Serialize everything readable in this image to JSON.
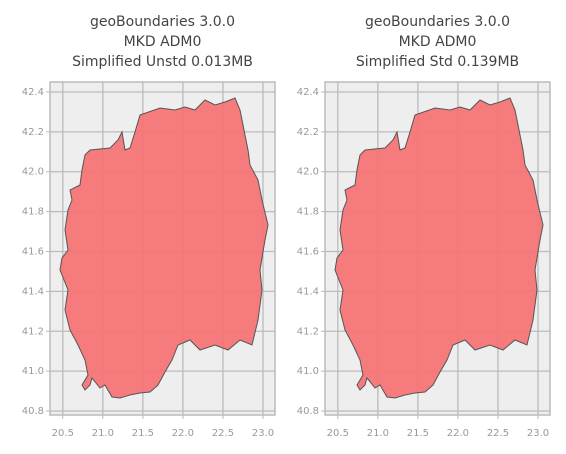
{
  "chart_data": [
    {
      "type": "map",
      "title": [
        "geoBoundaries 3.0.0",
        "MKD ADM0",
        "Simplified Unstd 0.013MB"
      ],
      "color": "#f57476",
      "grid": true,
      "xlim": [
        20.34,
        23.15
      ],
      "ylim": [
        40.78,
        42.45
      ],
      "xticks": [
        20.5,
        {
          "value": 21,
          "label": "21.0"
        },
        21.5,
        {
          "value": 22,
          "label": "22.0"
        },
        22.5,
        {
          "value": 23,
          "label": "23.0"
        }
      ],
      "yticks": [
        {
          "value": 40.8,
          "label": "40.8"
        },
        {
          "value": 41,
          "label": "41.0"
        },
        41.2,
        41.4,
        41.6,
        41.8,
        {
          "value": 42,
          "label": "42.0"
        },
        42.2,
        42.4
      ]
    },
    {
      "type": "map",
      "title": [
        "geoBoundaries 3.0.0",
        "MKD ADM0",
        "Simplified Std 0.139MB"
      ],
      "color": "#f57476",
      "grid": true,
      "xlim": [
        20.34,
        23.15
      ],
      "ylim": [
        40.78,
        42.45
      ],
      "xticks": [
        20.5,
        {
          "value": 21,
          "label": "21.0"
        },
        21.5,
        {
          "value": 22,
          "label": "22.0"
        },
        22.5,
        {
          "value": 23,
          "label": "23.0"
        }
      ],
      "yticks": [
        {
          "value": 40.8,
          "label": "40.8"
        },
        {
          "value": 41,
          "label": "41.0"
        },
        41.2,
        41.4,
        41.6,
        41.8,
        {
          "value": 42,
          "label": "42.0"
        },
        42.2,
        42.4
      ]
    }
  ]
}
